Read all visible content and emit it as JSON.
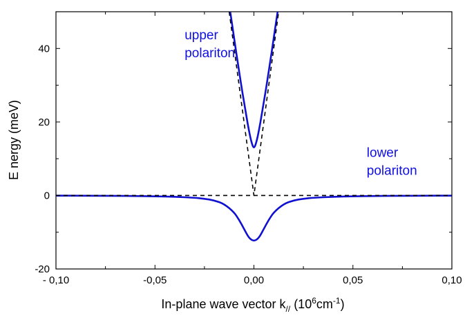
{
  "chart_data": {
    "type": "line",
    "title": "",
    "xlabel": {
      "main": "In-plane wave vector k",
      "sub": "//",
      "paren_open": " (10",
      "sup1": "6",
      "unit": "cm",
      "sup2": "-1",
      "paren_close": ")"
    },
    "ylabel": "E nergy (meV)",
    "xlim": [
      -0.1,
      0.1
    ],
    "ylim": [
      -20,
      50
    ],
    "xticks": [
      {
        "value": -0.1,
        "label": "- 0,10"
      },
      {
        "value": -0.05,
        "label": "-0,05"
      },
      {
        "value": 0.0,
        "label": "0,00"
      },
      {
        "value": 0.05,
        "label": "0,05"
      },
      {
        "value": 0.1,
        "label": "0,10"
      }
    ],
    "yticks": [
      {
        "value": -20,
        "label": "-20"
      },
      {
        "value": 0,
        "label": "0"
      },
      {
        "value": 20,
        "label": "20"
      },
      {
        "value": 40,
        "label": "40"
      }
    ],
    "grid": false,
    "legend": "none",
    "annotations": [
      {
        "lines": [
          "upper",
          "polariton"
        ],
        "x": -0.035,
        "y": 42.5,
        "color": "#1010e0"
      },
      {
        "lines": [
          "lower",
          "polariton"
        ],
        "x": 0.057,
        "y": 10.5,
        "color": "#1010e0"
      }
    ],
    "series": [
      {
        "style": "solid",
        "color": "#1010d0",
        "x": [
          -0.012,
          -0.0105,
          -0.009,
          -0.0075,
          -0.006,
          -0.0045,
          -0.003,
          -0.0015,
          0.0,
          0.0015,
          0.003,
          0.0045,
          0.006,
          0.0075,
          0.009,
          0.0105,
          0.012
        ],
        "y": [
          50.1,
          44.6,
          39.1,
          33.8,
          28.6,
          23.8,
          19.0,
          14.9,
          12.5,
          14.9,
          19.0,
          23.8,
          28.6,
          33.8,
          39.1,
          44.6,
          50.1
        ]
      },
      {
        "style": "solid",
        "color": "#1010d0",
        "x": [
          -0.1,
          -0.09,
          -0.08,
          -0.07,
          -0.06,
          -0.05,
          -0.04,
          -0.03,
          -0.025,
          -0.02,
          -0.015,
          -0.01,
          -0.0075,
          -0.005,
          -0.0025,
          0.0,
          0.0025,
          0.005,
          0.0075,
          0.01,
          0.015,
          0.02,
          0.025,
          0.03,
          0.04,
          0.05,
          0.06,
          0.07,
          0.08,
          0.09,
          0.1
        ],
        "y": [
          -0.05,
          -0.07,
          -0.08,
          -0.11,
          -0.15,
          -0.22,
          -0.35,
          -0.62,
          -0.88,
          -1.34,
          -2.3,
          -4.6,
          -6.6,
          -9.1,
          -11.6,
          -12.5,
          -11.6,
          -9.1,
          -6.6,
          -4.6,
          -2.3,
          -1.34,
          -0.88,
          -0.62,
          -0.35,
          -0.22,
          -0.15,
          -0.11,
          -0.08,
          -0.07,
          -0.05
        ]
      },
      {
        "style": "dashed",
        "color": "#000000",
        "x": [
          -0.0125,
          0.0,
          0.0125
        ],
        "y": [
          50,
          0,
          50
        ]
      },
      {
        "style": "dashed",
        "color": "#000000",
        "x": [
          -0.1,
          0.1
        ],
        "y": [
          0,
          0
        ]
      }
    ]
  }
}
